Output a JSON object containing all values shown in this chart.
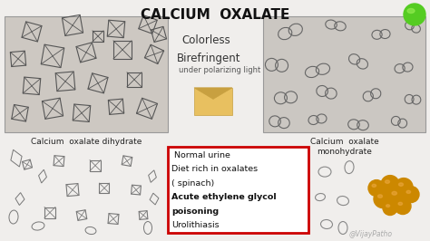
{
  "title": "CALCIUM  OXALATE",
  "bg_color": "#f0eeec",
  "title_fontsize": 11,
  "title_color": "#111111",
  "left_image_bg": "#cdc8c2",
  "right_image_bg": "#cbc7c2",
  "label_dihydrate": "Calcium  oxalate dihydrate",
  "label_monohydrate": "Calcium  oxalate\nmonohydrate",
  "text_colorless": "Colorless",
  "text_birefringent": "Birefringent",
  "text_polarizing": "under polarizing light",
  "box_text": [
    [
      " Normal urine",
      false
    ],
    [
      "Diet rich in oxalates",
      false
    ],
    [
      "( spinach)",
      false
    ],
    [
      "Acute ethylene glycol",
      true
    ],
    [
      "poisoning",
      true
    ],
    [
      "Urolithiasis",
      false
    ]
  ],
  "box_border_color": "#cc0000",
  "watermark": "@VijayPatho",
  "green_ball_color": "#55cc22",
  "crystal_color": "#777777",
  "crystal_color_dark": "#555555",
  "gold_color": "#cc8800",
  "envelope_color": "#e8c060",
  "envelope_shadow": "#c8a040"
}
